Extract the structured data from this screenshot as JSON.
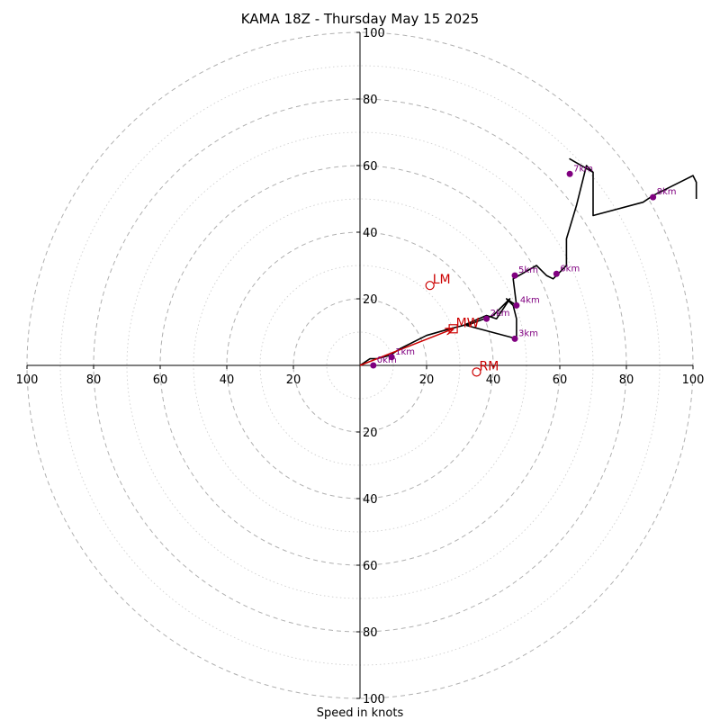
{
  "chart_data": {
    "type": "hodograph",
    "title": "KAMA 18Z - Thursday May 15 2025",
    "xlabel": "Speed in knots",
    "ring_max": 100,
    "ring_labels": [
      "20",
      "40",
      "60",
      "80",
      "100"
    ],
    "grid": true,
    "axes": {
      "x_ticks": [
        "100",
        "80",
        "60",
        "40",
        "20",
        "20",
        "40",
        "60",
        "80",
        "100"
      ],
      "y_ticks": [
        "100",
        "80",
        "60",
        "40",
        "20",
        "20",
        "40",
        "60",
        "80",
        "100"
      ]
    },
    "hodograph_trace": {
      "u": [
        0,
        3,
        5,
        9,
        12,
        20,
        27,
        31,
        38,
        41,
        45,
        40,
        32,
        47,
        47,
        47,
        46,
        44,
        47,
        46,
        53,
        54,
        56,
        58,
        62,
        62,
        65,
        66,
        68,
        70,
        63,
        70,
        70,
        85,
        88,
        100,
        101,
        101
      ],
      "v": [
        0,
        2,
        2,
        3,
        5,
        9,
        11,
        12,
        15,
        14,
        20,
        15,
        12,
        8,
        10,
        14,
        18,
        20,
        18,
        26,
        30,
        29,
        27,
        26,
        30,
        38,
        48,
        52,
        60,
        58,
        62,
        58,
        45,
        49,
        51,
        57,
        55,
        50
      ]
    },
    "height_markers": [
      {
        "label": "0km",
        "u": 4,
        "v": 0
      },
      {
        "label": "1km",
        "u": 9.5,
        "v": 2.5
      },
      {
        "label": "2km",
        "u": 38,
        "v": 14
      },
      {
        "label": "3km",
        "u": 46.5,
        "v": 8
      },
      {
        "label": "4km",
        "u": 47,
        "v": 18
      },
      {
        "label": "5km",
        "u": 46.5,
        "v": 27
      },
      {
        "label": "6km",
        "u": 59,
        "v": 27.5
      },
      {
        "label": "7km",
        "u": 63,
        "v": 57.5
      },
      {
        "label": "8km",
        "u": 88,
        "v": 50.5
      }
    ],
    "storm_motion": [
      {
        "label": "LM",
        "u": 21,
        "v": 24,
        "marker": "circle"
      },
      {
        "label": "RM",
        "u": 35,
        "v": -2,
        "marker": "circle"
      },
      {
        "label": "MW",
        "u": 28,
        "v": 11,
        "marker": "square"
      }
    ],
    "shear_vector": {
      "u": 28,
      "v": 11
    },
    "colors": {
      "trace": "#000000",
      "markers": "#800080",
      "motion": "#cc0000",
      "grid_major": "#b0b0b0",
      "grid_minor": "#cfcfcf"
    }
  }
}
